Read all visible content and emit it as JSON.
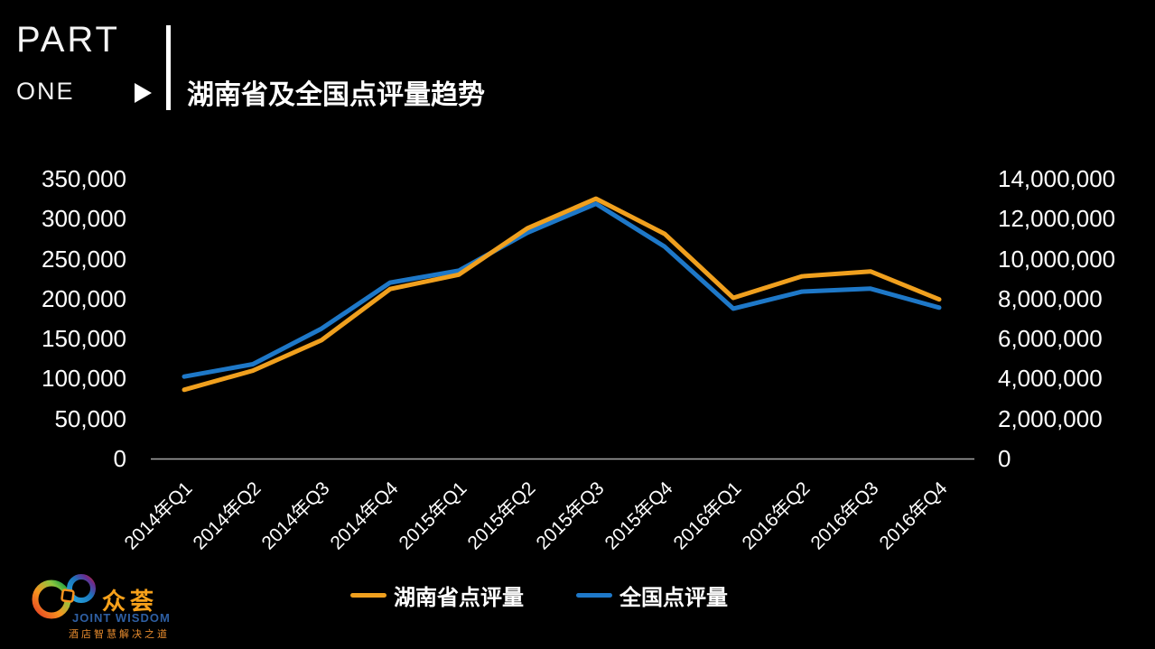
{
  "header": {
    "part_line1": "PART",
    "part_line2": "ONE",
    "title": "湖南省及全国点评量趋势"
  },
  "chart_data": {
    "type": "line",
    "title": "湖南省及全国点评量趋势",
    "categories": [
      "2014年Q1",
      "2014年Q2",
      "2014年Q3",
      "2014年Q4",
      "2015年Q1",
      "2015年Q2",
      "2015年Q3",
      "2015年Q4",
      "2016年Q1",
      "2016年Q2",
      "2016年Q3",
      "2016年Q4"
    ],
    "series": [
      {
        "name": "湖南省点评量",
        "axis": "left",
        "color": "#F0A01E",
        "values": [
          86000,
          110000,
          148000,
          212000,
          230000,
          288000,
          325000,
          281000,
          201000,
          228000,
          234000,
          199000
        ]
      },
      {
        "name": "全国点评量",
        "axis": "right",
        "color": "#1E78C8",
        "values": [
          4100000,
          4720000,
          6500000,
          8800000,
          9400000,
          11300000,
          12750000,
          10600000,
          7500000,
          8350000,
          8500000,
          7550000
        ]
      }
    ],
    "left_axis": {
      "min": 0,
      "max": 350000,
      "step": 50000,
      "ticks": [
        "350,000",
        "300,000",
        "250,000",
        "200,000",
        "150,000",
        "100,000",
        "50,000",
        "0"
      ]
    },
    "right_axis": {
      "min": 0,
      "max": 14000000,
      "step": 2000000,
      "ticks": [
        "14,000,000",
        "12,000,000",
        "10,000,000",
        "8,000,000",
        "6,000,000",
        "4,000,000",
        "2,000,000",
        "0"
      ]
    },
    "grid": false,
    "legend_position": "bottom",
    "axis_line_color": "#A6A6A6"
  },
  "logo": {
    "name_cn": "众荟",
    "name_en": "JOINT WISDOM",
    "tagline": "酒店智慧解决之道"
  }
}
